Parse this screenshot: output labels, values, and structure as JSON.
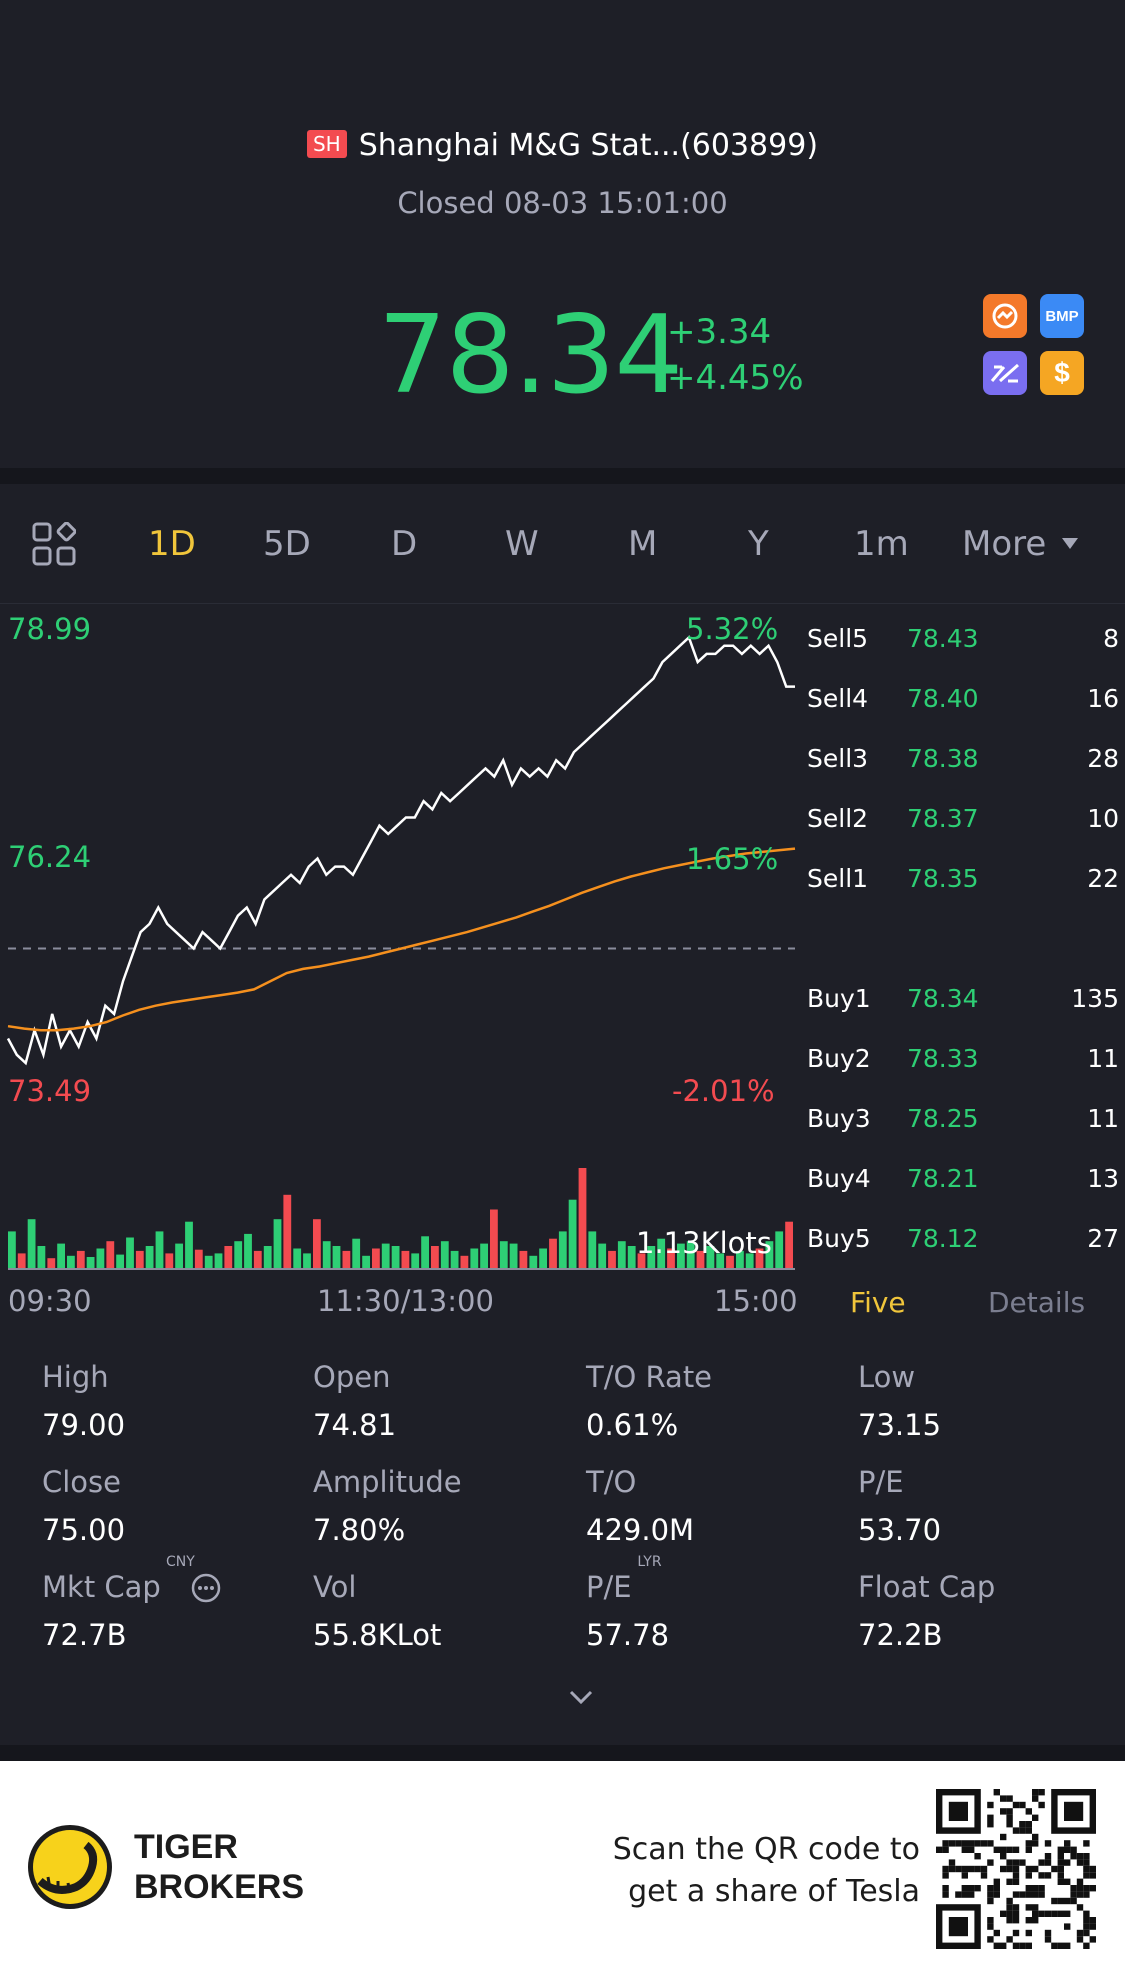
{
  "stock": {
    "exchange": "SH",
    "name": "Shanghai M&G Stat...(603899)",
    "status": "Closed 08-03 15:01:00",
    "price": "78.34",
    "change": "+3.34",
    "change_pct": "+4.45%"
  },
  "badges": [
    {
      "icon": "swap-badge-icon",
      "label": "",
      "color": "#f4792a"
    },
    {
      "icon": "bmp-badge-icon",
      "label": "BMP",
      "color": "#3b8af5"
    },
    {
      "icon": "chart-badge-icon",
      "label": "",
      "color": "#7a6ef0"
    },
    {
      "icon": "dollar-badge-icon",
      "label": "$",
      "color": "#f5a623"
    }
  ],
  "tabs": [
    {
      "label": "1D",
      "active": true
    },
    {
      "label": "5D",
      "active": false
    },
    {
      "label": "D",
      "active": false
    },
    {
      "label": "W",
      "active": false
    },
    {
      "label": "M",
      "active": false
    },
    {
      "label": "Y",
      "active": false
    },
    {
      "label": "1m",
      "active": false
    },
    {
      "label": "More",
      "active": false
    }
  ],
  "chart_data": {
    "type": "line",
    "y_labels": {
      "top": "78.99",
      "mid": "76.24",
      "bottom": "73.49"
    },
    "pct_labels": {
      "top": "5.32%",
      "mid": "1.65%",
      "bottom": "-2.01%"
    },
    "x_labels": [
      "09:30",
      "11:30/13:00",
      "15:00"
    ],
    "prev_close": 75.0,
    "ylim": [
      73.49,
      78.99
    ],
    "volume_label": "1.13Klots",
    "series": [
      {
        "values": [
          73.9,
          73.7,
          73.6,
          74.0,
          73.7,
          74.2,
          73.8,
          74.0,
          73.8,
          74.1,
          73.9,
          74.3,
          74.2,
          74.6,
          74.9,
          75.2,
          75.3,
          75.5,
          75.3,
          75.2,
          75.1,
          75.0,
          75.2,
          75.1,
          75.0,
          75.2,
          75.4,
          75.5,
          75.3,
          75.6,
          75.7,
          75.8,
          75.9,
          75.8,
          76.0,
          76.1,
          75.9,
          76.0,
          76.0,
          75.9,
          76.1,
          76.3,
          76.5,
          76.4,
          76.5,
          76.6,
          76.6,
          76.8,
          76.7,
          76.9,
          76.8,
          76.9,
          77.0,
          77.1,
          77.2,
          77.1,
          77.3,
          77.0,
          77.2,
          77.1,
          77.2,
          77.1,
          77.3,
          77.2,
          77.4,
          77.5,
          77.6,
          77.7,
          77.8,
          77.9,
          78.0,
          78.1,
          78.2,
          78.3,
          78.5,
          78.6,
          78.7,
          78.8,
          78.5,
          78.6,
          78.6,
          78.7,
          78.7,
          78.6,
          78.7,
          78.6,
          78.7,
          78.5,
          78.2,
          78.2
        ],
        "color": "#ffffff"
      },
      {
        "values": [
          74.05,
          74.02,
          74.0,
          74.0,
          74.02,
          74.05,
          74.1,
          74.18,
          74.25,
          74.3,
          74.34,
          74.37,
          74.4,
          74.43,
          74.46,
          74.5,
          74.6,
          74.7,
          74.75,
          74.78,
          74.82,
          74.86,
          74.9,
          74.95,
          75.0,
          75.05,
          75.1,
          75.15,
          75.2,
          75.26,
          75.32,
          75.38,
          75.45,
          75.52,
          75.6,
          75.68,
          75.75,
          75.82,
          75.88,
          75.93,
          75.98,
          76.02,
          76.06,
          76.1,
          76.13,
          76.16,
          76.18,
          76.2,
          76.22
        ],
        "color": "#f5901e"
      }
    ],
    "volume": [
      30,
      12,
      40,
      18,
      8,
      20,
      10,
      14,
      9,
      16,
      22,
      11,
      25,
      14,
      18,
      30,
      12,
      20,
      38,
      15,
      10,
      12,
      18,
      22,
      28,
      14,
      18,
      40,
      60,
      16,
      12,
      40,
      22,
      18,
      14,
      24,
      10,
      16,
      20,
      18,
      14,
      12,
      26,
      18,
      22,
      14,
      10,
      16,
      20,
      48,
      22,
      20,
      14,
      10,
      16,
      24,
      30,
      56,
      82,
      30,
      20,
      14,
      22,
      18,
      12,
      18,
      24,
      16,
      20,
      22,
      14,
      18,
      12,
      10,
      14,
      12,
      16,
      22,
      30,
      38
    ],
    "volume_colors_up": "#2ecf75",
    "volume_colors_down": "#f34b50"
  },
  "order_book": {
    "asks": [
      {
        "side": "Sell5",
        "price": "78.43",
        "vol": "8"
      },
      {
        "side": "Sell4",
        "price": "78.40",
        "vol": "16"
      },
      {
        "side": "Sell3",
        "price": "78.38",
        "vol": "28"
      },
      {
        "side": "Sell2",
        "price": "78.37",
        "vol": "10"
      },
      {
        "side": "Sell1",
        "price": "78.35",
        "vol": "22"
      }
    ],
    "bids": [
      {
        "side": "Buy1",
        "price": "78.34",
        "vol": "135"
      },
      {
        "side": "Buy2",
        "price": "78.33",
        "vol": "11"
      },
      {
        "side": "Buy3",
        "price": "78.25",
        "vol": "11"
      },
      {
        "side": "Buy4",
        "price": "78.21",
        "vol": "13"
      },
      {
        "side": "Buy5",
        "price": "78.12",
        "vol": "27"
      }
    ],
    "tab_five": "Five",
    "tab_details": "Details"
  },
  "stats": [
    {
      "label": "High",
      "value": "79.00"
    },
    {
      "label": "Open",
      "value": "74.81"
    },
    {
      "label": "T/O Rate",
      "value": "0.61%"
    },
    {
      "label": "Low",
      "value": "73.15"
    },
    {
      "label": "Close",
      "value": "75.00"
    },
    {
      "label": "Amplitude",
      "value": "7.80%"
    },
    {
      "label": "T/O",
      "value": "429.0M"
    },
    {
      "label": "P/E",
      "value": "53.70"
    },
    {
      "label": "Mkt Cap",
      "value": "72.7B",
      "sup": "CNY"
    },
    {
      "label": "Vol",
      "value": "55.8KLot"
    },
    {
      "label": "P/E",
      "value": "57.78",
      "sup": "LYR"
    },
    {
      "label": "Float Cap",
      "value": "72.2B"
    }
  ],
  "promo": {
    "brand_line1": "TIGER",
    "brand_line2": "BROKERS",
    "text_line1": "Scan the QR code to",
    "text_line2": "get a share of Tesla"
  }
}
